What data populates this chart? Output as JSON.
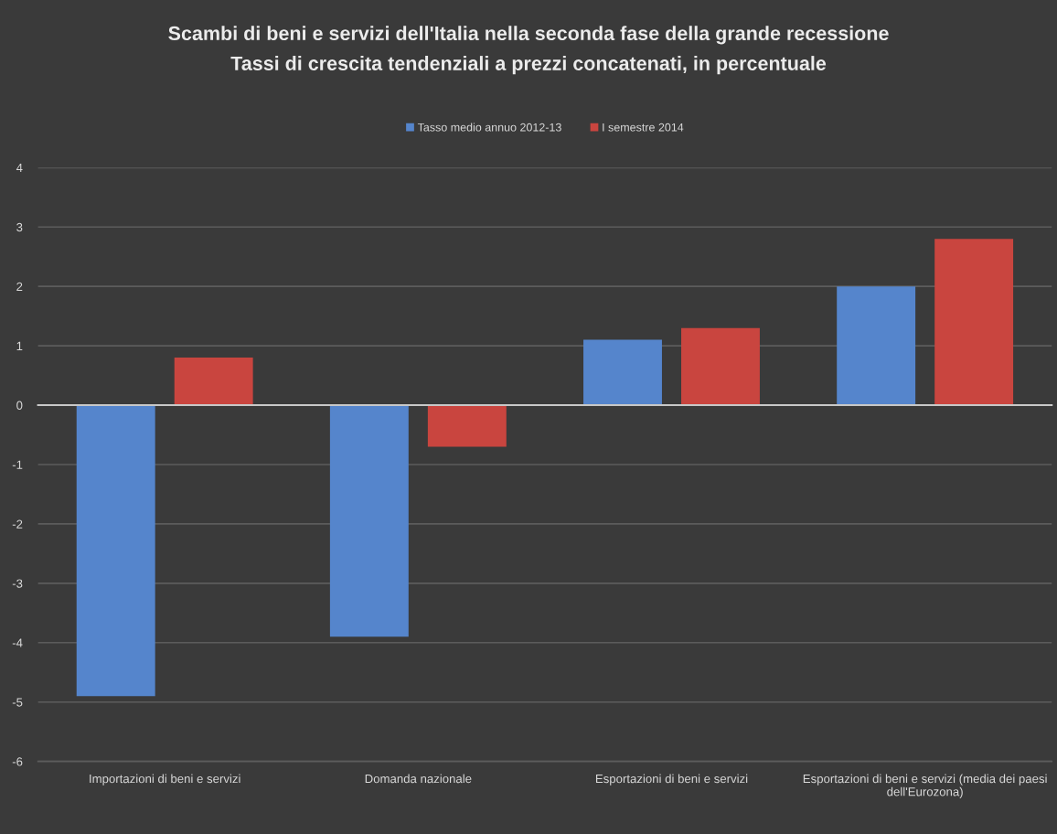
{
  "chart_data": {
    "type": "bar",
    "title": "Scambi di beni e servizi dell'Italia nella seconda fase della grande recessione",
    "subtitle": "Tassi di crescita tendenziali a prezzi concatenati, in percentuale",
    "categories": [
      "Importazioni di beni e servizi",
      "Domanda nazionale",
      "Esportazioni di beni e servizi",
      "Esportazioni di beni e servizi (media dei paesi\ndell'Eurozona)"
    ],
    "series": [
      {
        "name": "Tasso medio annuo 2012-13",
        "color": "#5585cc",
        "values": [
          -4.9,
          -3.9,
          1.1,
          2.0
        ]
      },
      {
        "name": "I semestre 2014",
        "color": "#c9453f",
        "values": [
          0.8,
          -0.7,
          1.3,
          2.8
        ]
      }
    ],
    "ylim": [
      -6,
      4
    ],
    "yticks": [
      -6,
      -5,
      -4,
      -3,
      -2,
      -1,
      0,
      1,
      2,
      3,
      4
    ],
    "grid": "y",
    "legend": "top"
  }
}
